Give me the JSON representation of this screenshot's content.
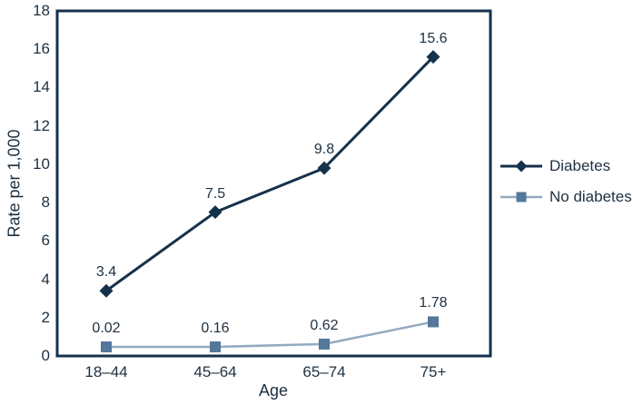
{
  "colors": {
    "axis": "#16314b",
    "text": "#1e3040",
    "diabetes_line": "#16314b",
    "diabetes_marker": "#16314b",
    "no_diabetes_line": "#94aabf",
    "no_diabetes_marker": "#54779b",
    "background": "#ffffff"
  },
  "chart_data": {
    "type": "line",
    "title": "",
    "xlabel": "Age",
    "ylabel": "Rate per 1,000",
    "categories": [
      "18–44",
      "45–64",
      "65–74",
      "75+"
    ],
    "y_ticks": [
      0,
      2,
      4,
      6,
      8,
      10,
      12,
      14,
      16,
      18
    ],
    "ylim": [
      0,
      18
    ],
    "grid": false,
    "legend_position": "right",
    "series": [
      {
        "name": "Diabetes",
        "marker": "diamond",
        "line_color": "#16314b",
        "marker_color": "#16314b",
        "values": [
          3.4,
          7.5,
          9.8,
          15.6
        ],
        "labels": [
          "3.4",
          "7.5",
          "9.8",
          "15.6"
        ]
      },
      {
        "name": "No diabetes",
        "marker": "square",
        "line_color": "#94aabf",
        "marker_color": "#54779b",
        "values": [
          0.02,
          0.16,
          0.62,
          1.78
        ],
        "labels": [
          "0.02",
          "0.16",
          "0.62",
          "1.78"
        ]
      }
    ]
  }
}
